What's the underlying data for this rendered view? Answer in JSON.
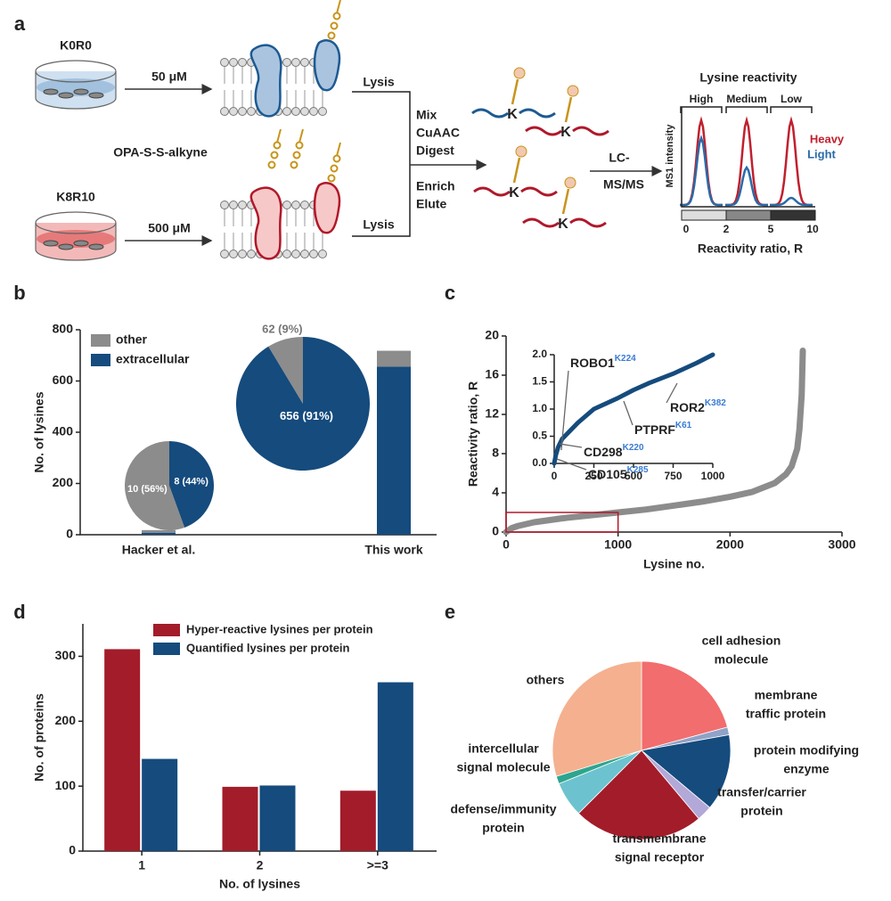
{
  "diagram": {
    "panel": "a",
    "left_cells": [
      {
        "name": "K0R0",
        "dose": "50 μM"
      },
      {
        "name": "K8R10",
        "dose": "500 μM"
      }
    ],
    "probe": "OPA-S-S-alkyne",
    "lysis": [
      "Lysis",
      "Lysis"
    ],
    "steps_1": [
      "Mix",
      "CuAAC",
      "Digest"
    ],
    "steps_2": [
      "Enrich",
      "Elute"
    ],
    "residue": [
      "K",
      "K",
      "K",
      "K"
    ],
    "ms": [
      "LC-",
      "MS/MS"
    ],
    "inset": {
      "title": "Lysine reactivity",
      "groups": [
        "High",
        "Medium",
        "Low"
      ],
      "ylabel": "MS1 intensity",
      "legend": [
        "Heavy",
        "Light"
      ],
      "ticks": [
        0,
        2,
        5,
        10
      ],
      "xlabel": "Reactivity ratio, R"
    }
  },
  "chart_data": [
    {
      "panel": "b",
      "type": "bar",
      "stacked": true,
      "categories": [
        "Hacker et al.",
        "This work"
      ],
      "series": [
        {
          "name": "extracellular",
          "color": "#154b7d",
          "values": [
            8,
            656
          ]
        },
        {
          "name": "other",
          "color": "#8c8c8c",
          "values": [
            10,
            62
          ]
        }
      ],
      "ylabel": "No. of lysines",
      "ylim": [
        0,
        800
      ],
      "yticks": [
        0,
        200,
        400,
        600,
        800
      ],
      "legend": "top-left",
      "pies": [
        {
          "values": [
            8,
            10
          ],
          "value_labels": [
            "8 (44%)",
            "10 (56%)"
          ]
        },
        {
          "values": [
            656,
            62
          ],
          "value_labels": [
            "656 (91%)",
            "62 (9%)"
          ]
        }
      ]
    },
    {
      "panel": "c",
      "type": "line",
      "color": "#8c8c8c",
      "x": [
        0,
        50,
        100,
        250,
        500,
        750,
        1000,
        1250,
        1500,
        1750,
        2000,
        2200,
        2400,
        2500,
        2550,
        2600,
        2620,
        2640,
        2650
      ],
      "values": [
        0,
        0.4,
        0.6,
        1.0,
        1.4,
        1.7,
        2.0,
        2.3,
        2.7,
        3.1,
        3.6,
        4.1,
        5.0,
        5.9,
        6.7,
        8.5,
        10.5,
        14,
        18.5
      ],
      "xlabel": "Lysine no.",
      "ylabel": "Reactivity ratio, R",
      "xlim": [
        0,
        3000
      ],
      "xticks": [
        0,
        1000,
        2000,
        3000
      ],
      "ylim": [
        0,
        20
      ],
      "yticks": [
        0,
        4,
        8,
        12,
        16,
        20
      ],
      "inset": {
        "type": "line",
        "color": "#154b7d",
        "x": [
          0,
          10,
          25,
          50,
          100,
          150,
          250,
          400,
          500,
          600,
          750,
          900,
          1000
        ],
        "values": [
          0,
          0.15,
          0.3,
          0.45,
          0.6,
          0.75,
          1.0,
          1.2,
          1.35,
          1.48,
          1.65,
          1.85,
          2.0
        ],
        "xlim": [
          0,
          1000
        ],
        "xticks": [
          0,
          250,
          500,
          750,
          1000
        ],
        "ylim": [
          0,
          2
        ],
        "yticks": [
          {
            "value": 0,
            "label": "0.0"
          },
          {
            "value": 0.5,
            "label": "0.5"
          },
          {
            "value": 1,
            "label": "1.0"
          },
          {
            "value": 1.5,
            "label": "1.5"
          },
          {
            "value": 2,
            "label": "2.0"
          }
        ],
        "annotations": [
          {
            "text": "ROBO1",
            "sup": "K224"
          },
          {
            "text": "ROR2",
            "sup": "K382"
          },
          {
            "text": "PTPRF",
            "sup": "K61"
          },
          {
            "text": "CD298",
            "sup": "K220"
          },
          {
            "text": "CD105",
            "sup": "K285"
          }
        ]
      }
    },
    {
      "panel": "d",
      "type": "bar",
      "categories": [
        "1",
        "2",
        ">=3"
      ],
      "series": [
        {
          "name": "Hyper-reactive lysines per protein",
          "color": "#a31c2a",
          "values": [
            311,
            99,
            93
          ]
        },
        {
          "name": "Quantified lysines per protein",
          "color": "#154b7d",
          "values": [
            142,
            101,
            260
          ]
        }
      ],
      "xlabel": "No. of  lysines",
      "ylabel": "No. of proteins",
      "ylim": [
        0,
        350
      ],
      "yticks": [
        0,
        100,
        200,
        300
      ],
      "legend": "top-right"
    },
    {
      "panel": "e",
      "type": "pie",
      "categories": [
        [
          "cell adhesion",
          "molecule"
        ],
        [
          "membrane",
          "traffic protein"
        ],
        [
          "protein modifying",
          "enzyme"
        ],
        [
          "transfer/carrier",
          "protein"
        ],
        [
          "transmembrane",
          "signal receptor"
        ],
        [
          "defense/immunity",
          "protein"
        ],
        [
          "intercellular",
          "signal molecule"
        ],
        [
          "others"
        ]
      ],
      "values": [
        20.8,
        1.4,
        13.9,
        2.8,
        23.6,
        6.4,
        1.4,
        29.7
      ],
      "colors": [
        "#f26d6d",
        "#8fa2c8",
        "#154b7d",
        "#b3a9d8",
        "#a31c2a",
        "#6cc3cf",
        "#2ea58f",
        "#f5b08f"
      ]
    }
  ]
}
